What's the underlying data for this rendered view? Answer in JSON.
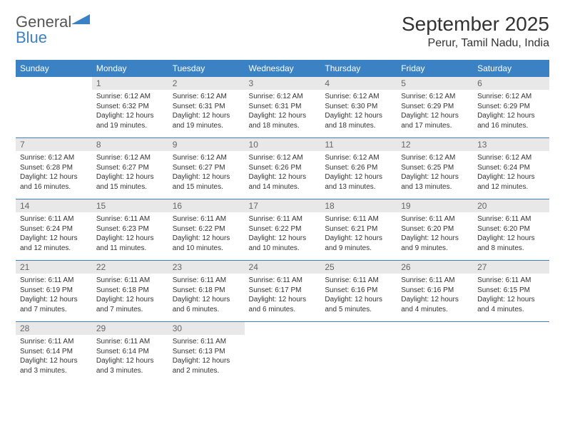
{
  "brand": {
    "part1": "General",
    "part2": "Blue"
  },
  "title": "September 2025",
  "location": "Perur, Tamil Nadu, India",
  "colors": {
    "header_bg": "#3b82c4",
    "header_text": "#ffffff",
    "daynum_bg": "#e8e8e8",
    "daynum_text": "#666666",
    "rule": "#3b82c4",
    "body_text": "#333333",
    "background": "#ffffff"
  },
  "typography": {
    "title_fontsize": 28,
    "location_fontsize": 16,
    "header_fontsize": 12,
    "daynum_fontsize": 12,
    "info_fontsize": 10,
    "font_family": "Arial"
  },
  "layout": {
    "columns": 7,
    "rows": 5,
    "first_weekday_offset": 1
  },
  "weekdays": [
    "Sunday",
    "Monday",
    "Tuesday",
    "Wednesday",
    "Thursday",
    "Friday",
    "Saturday"
  ],
  "days": [
    {
      "n": 1,
      "sunrise": "6:12 AM",
      "sunset": "6:32 PM",
      "daylight": "12 hours and 19 minutes."
    },
    {
      "n": 2,
      "sunrise": "6:12 AM",
      "sunset": "6:31 PM",
      "daylight": "12 hours and 19 minutes."
    },
    {
      "n": 3,
      "sunrise": "6:12 AM",
      "sunset": "6:31 PM",
      "daylight": "12 hours and 18 minutes."
    },
    {
      "n": 4,
      "sunrise": "6:12 AM",
      "sunset": "6:30 PM",
      "daylight": "12 hours and 18 minutes."
    },
    {
      "n": 5,
      "sunrise": "6:12 AM",
      "sunset": "6:29 PM",
      "daylight": "12 hours and 17 minutes."
    },
    {
      "n": 6,
      "sunrise": "6:12 AM",
      "sunset": "6:29 PM",
      "daylight": "12 hours and 16 minutes."
    },
    {
      "n": 7,
      "sunrise": "6:12 AM",
      "sunset": "6:28 PM",
      "daylight": "12 hours and 16 minutes."
    },
    {
      "n": 8,
      "sunrise": "6:12 AM",
      "sunset": "6:27 PM",
      "daylight": "12 hours and 15 minutes."
    },
    {
      "n": 9,
      "sunrise": "6:12 AM",
      "sunset": "6:27 PM",
      "daylight": "12 hours and 15 minutes."
    },
    {
      "n": 10,
      "sunrise": "6:12 AM",
      "sunset": "6:26 PM",
      "daylight": "12 hours and 14 minutes."
    },
    {
      "n": 11,
      "sunrise": "6:12 AM",
      "sunset": "6:26 PM",
      "daylight": "12 hours and 13 minutes."
    },
    {
      "n": 12,
      "sunrise": "6:12 AM",
      "sunset": "6:25 PM",
      "daylight": "12 hours and 13 minutes."
    },
    {
      "n": 13,
      "sunrise": "6:12 AM",
      "sunset": "6:24 PM",
      "daylight": "12 hours and 12 minutes."
    },
    {
      "n": 14,
      "sunrise": "6:11 AM",
      "sunset": "6:24 PM",
      "daylight": "12 hours and 12 minutes."
    },
    {
      "n": 15,
      "sunrise": "6:11 AM",
      "sunset": "6:23 PM",
      "daylight": "12 hours and 11 minutes."
    },
    {
      "n": 16,
      "sunrise": "6:11 AM",
      "sunset": "6:22 PM",
      "daylight": "12 hours and 10 minutes."
    },
    {
      "n": 17,
      "sunrise": "6:11 AM",
      "sunset": "6:22 PM",
      "daylight": "12 hours and 10 minutes."
    },
    {
      "n": 18,
      "sunrise": "6:11 AM",
      "sunset": "6:21 PM",
      "daylight": "12 hours and 9 minutes."
    },
    {
      "n": 19,
      "sunrise": "6:11 AM",
      "sunset": "6:20 PM",
      "daylight": "12 hours and 9 minutes."
    },
    {
      "n": 20,
      "sunrise": "6:11 AM",
      "sunset": "6:20 PM",
      "daylight": "12 hours and 8 minutes."
    },
    {
      "n": 21,
      "sunrise": "6:11 AM",
      "sunset": "6:19 PM",
      "daylight": "12 hours and 7 minutes."
    },
    {
      "n": 22,
      "sunrise": "6:11 AM",
      "sunset": "6:18 PM",
      "daylight": "12 hours and 7 minutes."
    },
    {
      "n": 23,
      "sunrise": "6:11 AM",
      "sunset": "6:18 PM",
      "daylight": "12 hours and 6 minutes."
    },
    {
      "n": 24,
      "sunrise": "6:11 AM",
      "sunset": "6:17 PM",
      "daylight": "12 hours and 6 minutes."
    },
    {
      "n": 25,
      "sunrise": "6:11 AM",
      "sunset": "6:16 PM",
      "daylight": "12 hours and 5 minutes."
    },
    {
      "n": 26,
      "sunrise": "6:11 AM",
      "sunset": "6:16 PM",
      "daylight": "12 hours and 4 minutes."
    },
    {
      "n": 27,
      "sunrise": "6:11 AM",
      "sunset": "6:15 PM",
      "daylight": "12 hours and 4 minutes."
    },
    {
      "n": 28,
      "sunrise": "6:11 AM",
      "sunset": "6:14 PM",
      "daylight": "12 hours and 3 minutes."
    },
    {
      "n": 29,
      "sunrise": "6:11 AM",
      "sunset": "6:14 PM",
      "daylight": "12 hours and 3 minutes."
    },
    {
      "n": 30,
      "sunrise": "6:11 AM",
      "sunset": "6:13 PM",
      "daylight": "12 hours and 2 minutes."
    }
  ],
  "labels": {
    "sunrise_prefix": "Sunrise: ",
    "sunset_prefix": "Sunset: ",
    "daylight_prefix": "Daylight: "
  }
}
